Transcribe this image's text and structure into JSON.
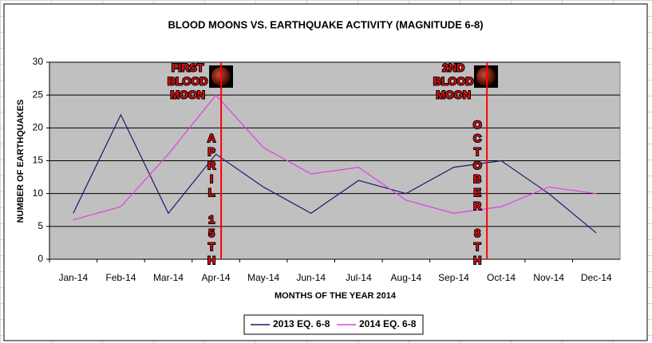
{
  "chart_data": {
    "type": "line",
    "title": "BLOOD MOONS VS. EARTHQUAKE ACTIVITY (MAGNITUDE 6-8)",
    "x_label": "MONTHS OF THE YEAR 2014",
    "y_label": "NUMBER OF EARTHQUAKES",
    "categories": [
      "Jan-14",
      "Feb-14",
      "Mar-14",
      "Apr-14",
      "May-14",
      "Jun-14",
      "Jul-14",
      "Aug-14",
      "Sep-14",
      "Oct-14",
      "Nov-14",
      "Dec-14"
    ],
    "series": [
      {
        "name": "2013 EQ. 6-8",
        "color": "#1a1a6e",
        "values": [
          7,
          22,
          7,
          16,
          11,
          7,
          12,
          10,
          14,
          15,
          10,
          4
        ]
      },
      {
        "name": "2014 EQ. 6-8",
        "color": "#e040e0",
        "values": [
          6,
          8,
          16,
          25,
          17,
          13,
          14,
          9,
          7,
          8,
          11,
          10
        ]
      }
    ],
    "ylim": [
      0,
      30
    ],
    "yticks": [
      0,
      5,
      10,
      15,
      20,
      25,
      30
    ],
    "grid": true,
    "legend": "bottom",
    "annotations": [
      {
        "lines": [
          "FIRST",
          "BLOOD",
          "MOON"
        ],
        "date": "APRIL 15TH"
      },
      {
        "lines": [
          "2ND",
          "BLOOD",
          "MOON"
        ],
        "date": "OCTOBER 8TH"
      }
    ]
  }
}
